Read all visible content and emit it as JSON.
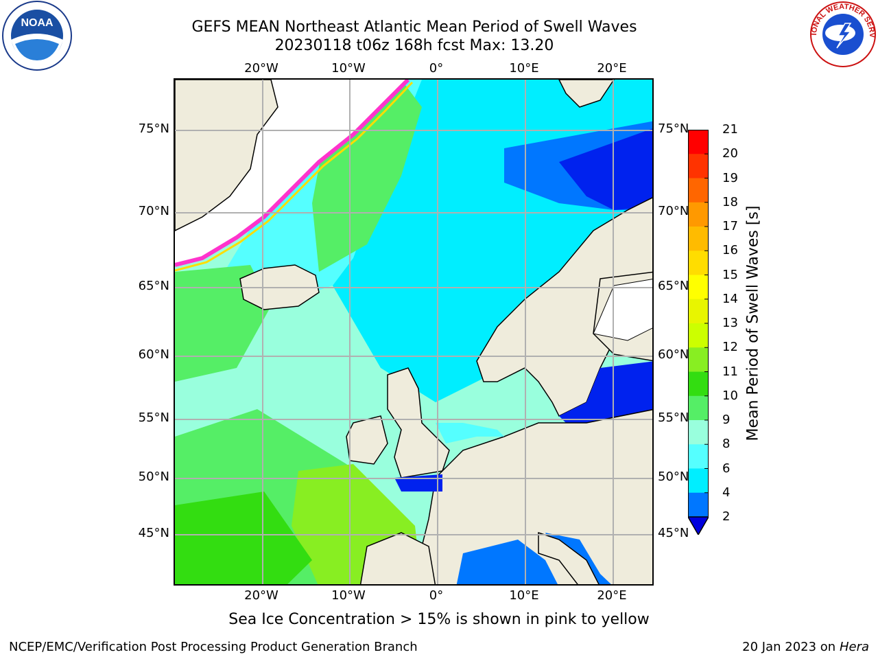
{
  "title": {
    "line1": "GEFS MEAN Northeast Atlantic Mean Period of Swell Waves",
    "line2": "20230118 t06z 168h fcst   Max: 13.20"
  },
  "map": {
    "lon_labels": [
      "20°W",
      "10°W",
      "0°",
      "10°E",
      "20°E"
    ],
    "lat_labels": [
      "75°N",
      "70°N",
      "65°N",
      "60°N",
      "55°N",
      "50°N",
      "45°N"
    ],
    "colors": {
      "land": "#efecdc",
      "ice_white": "#ffffff",
      "grid": "#b0b0b0",
      "coast": "#000000",
      "sea_ice_edge": "#ff33cc"
    }
  },
  "colorbar": {
    "title": "Mean Period of Swell Waves [s]",
    "ticks": [
      "21",
      "20",
      "19",
      "18",
      "17",
      "16",
      "15",
      "14",
      "13",
      "12",
      "11",
      "10",
      "9",
      "8",
      "6",
      "4",
      "2"
    ],
    "colors": [
      "#ff0000",
      "#ff3300",
      "#ff6600",
      "#ff9900",
      "#ffbb00",
      "#ffdd00",
      "#ffff00",
      "#e8f500",
      "#ccff00",
      "#88ee22",
      "#33dd11",
      "#55ee66",
      "#99ffdd",
      "#55ffff",
      "#00eeff",
      "#0077ff",
      "#0022ee"
    ],
    "extend_color": "#0000dd"
  },
  "notes": {
    "ice": "Sea Ice Concentration > 15% is shown in pink to yellow",
    "credit": "NCEP/EMC/Verification Post Processing Product Generation Branch",
    "date_prefix": "20 Jan 2023 on ",
    "date_machine": "Hera"
  },
  "logos": {
    "noaa_text": "NOAA",
    "nws_text": "NATIONAL WEATHER SERVICE"
  }
}
